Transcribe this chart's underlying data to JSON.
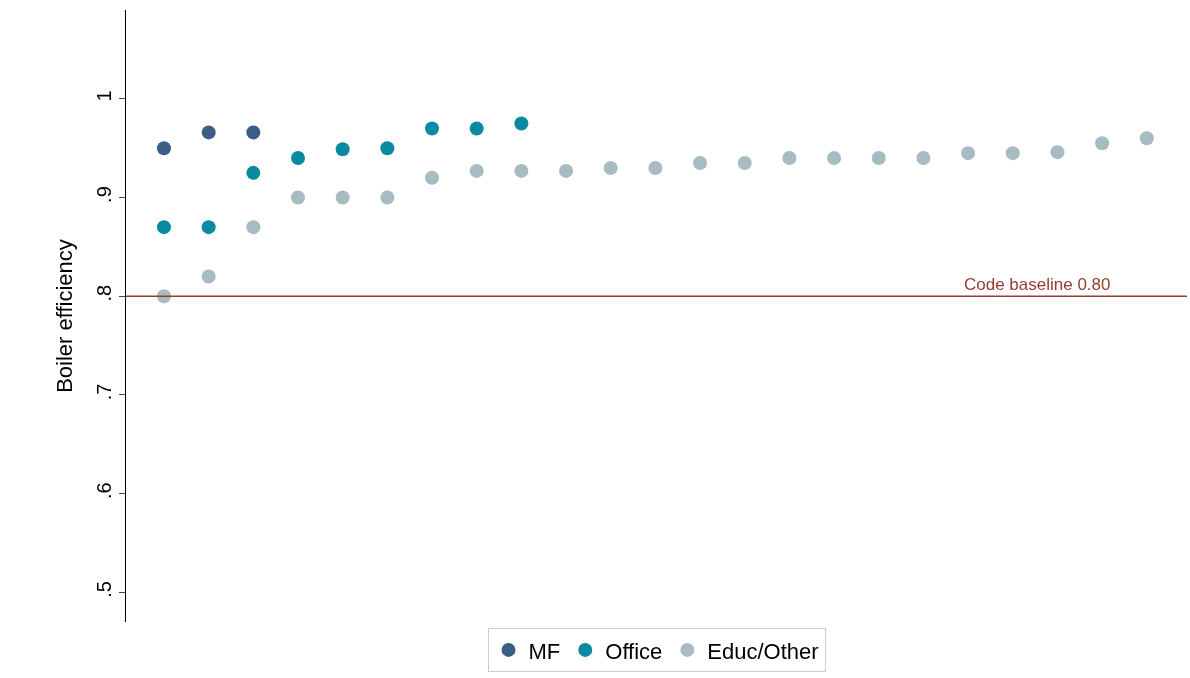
{
  "chart_data": {
    "type": "scatter",
    "ylabel": "Boiler efficiency",
    "categories": [
      null,
      null,
      null,
      null,
      null,
      null,
      null,
      null,
      null,
      null,
      null,
      null,
      null,
      null,
      null,
      null,
      null,
      null,
      null,
      null,
      null,
      null,
      null
    ],
    "series": [
      {
        "name": "MF",
        "color": "#3a5e85",
        "values": [
          0.95,
          0.966,
          0.966,
          null,
          null,
          null,
          null,
          null,
          null,
          null,
          null,
          null,
          null,
          null,
          null,
          null,
          null,
          null,
          null,
          null,
          null,
          null,
          null
        ]
      },
      {
        "name": "Office",
        "color": "#0a8aa0",
        "values": [
          0.87,
          0.87,
          0.925,
          0.94,
          0.949,
          0.95,
          0.97,
          0.97,
          0.975,
          null,
          null,
          null,
          null,
          null,
          null,
          null,
          null,
          null,
          null,
          null,
          null,
          null,
          null
        ]
      },
      {
        "name": "Educ/Other",
        "color": "#a6bcc2",
        "values": [
          0.8,
          0.82,
          0.87,
          0.9,
          0.9,
          0.9,
          0.92,
          0.927,
          0.927,
          0.927,
          0.93,
          0.93,
          0.935,
          0.935,
          0.94,
          0.94,
          0.94,
          0.94,
          0.945,
          0.945,
          0.946,
          0.955,
          0.96
        ]
      }
    ],
    "ylim": [
      0.47,
      1.09
    ],
    "yticks": [
      {
        "value": 0.5,
        "label": ".5"
      },
      {
        "value": 0.6,
        "label": ".6"
      },
      {
        "value": 0.7,
        "label": ".7"
      },
      {
        "value": 0.8,
        "label": ".8"
      },
      {
        "value": 0.9,
        "label": ".9"
      },
      1
    ],
    "ref_lines": [
      {
        "axis": "y",
        "value": 0.8,
        "label": "Code baseline 0.80",
        "color": "#983c2f"
      }
    ],
    "tick_labels": "y",
    "legend": "bottom",
    "marker": "circle"
  }
}
